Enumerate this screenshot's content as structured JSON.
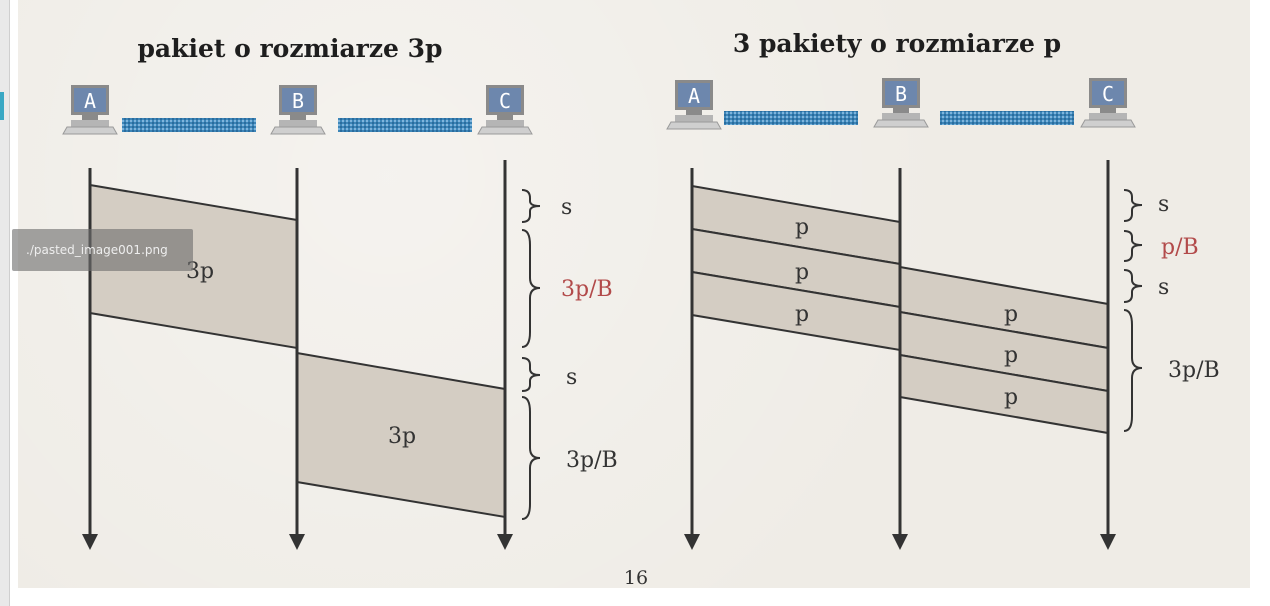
{
  "slide": {
    "page_number": "16",
    "left": {
      "title": "pakiet o rozmiarze 3p",
      "nodes": [
        "A",
        "B",
        "C"
      ],
      "packet_label_1": "3p",
      "packet_label_2": "3p",
      "brace_labels": [
        "s",
        "3p/B",
        "s",
        "3p/B"
      ]
    },
    "right": {
      "title": "3 pakiety o rozmiarze p",
      "nodes": [
        "A",
        "B",
        "C"
      ],
      "packet_labels_ab": [
        "p",
        "p",
        "p"
      ],
      "packet_labels_bc": [
        "p",
        "p",
        "p"
      ],
      "brace_labels": [
        "s",
        "p/B",
        "s",
        "3p/B"
      ]
    }
  },
  "tooltip": {
    "text": "./pasted_image001.png"
  },
  "colors": {
    "background": "#efece6",
    "packet_fill": "#d4cdc3",
    "line": "#333333",
    "link": "#3d86b8",
    "accent_red": "#b24a4a",
    "pc_screen": "#6d87ad"
  }
}
